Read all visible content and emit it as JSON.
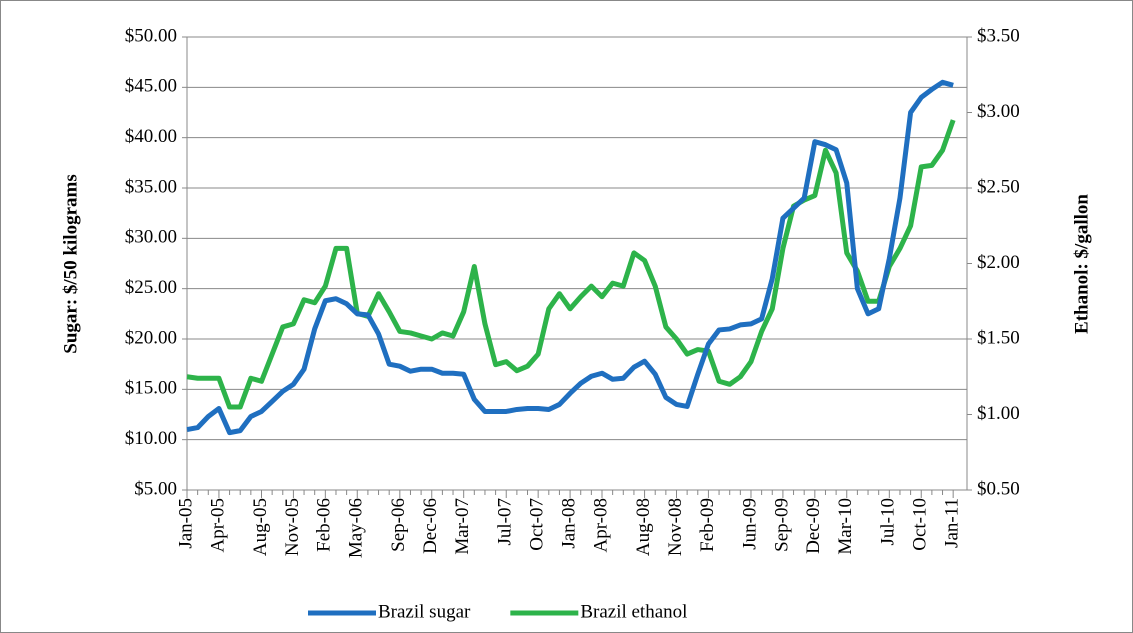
{
  "chart_data": {
    "type": "line",
    "y_label": "Sugar:  $/50 kilograms",
    "y2_label": "Ethanol:  $/gallon",
    "categories": [
      "Jan-05",
      null,
      null,
      "Apr-05",
      null,
      null,
      null,
      "Aug-05",
      null,
      null,
      "Nov-05",
      null,
      null,
      "Feb-06",
      null,
      null,
      "May-06",
      null,
      null,
      null,
      "Sep-06",
      null,
      null,
      "Dec-06",
      null,
      null,
      "Mar-07",
      null,
      null,
      null,
      "Jul-07",
      null,
      null,
      "Oct-07",
      null,
      null,
      "Jan-08",
      null,
      null,
      "Apr-08",
      null,
      null,
      null,
      "Aug-08",
      null,
      null,
      "Nov-08",
      null,
      null,
      "Feb-09",
      null,
      null,
      null,
      "Jun-09",
      null,
      null,
      "Sep-09",
      null,
      null,
      "Dec-09",
      null,
      null,
      "Mar-10",
      null,
      null,
      null,
      "Jul-10",
      null,
      null,
      "Oct-10",
      null,
      null,
      "Jan-11"
    ],
    "series": [
      {
        "name": "Brazil sugar",
        "color": "#1f6fc0",
        "values": [
          11.0,
          11.2,
          12.3,
          13.1,
          10.7,
          10.9,
          12.3,
          12.8,
          13.8,
          14.8,
          15.5,
          17.0,
          21.0,
          23.8,
          24.0,
          23.5,
          22.5,
          22.4,
          20.5,
          17.5,
          17.3,
          16.8,
          17.0,
          17.0,
          16.6,
          16.6,
          16.5,
          14.0,
          12.8,
          12.8,
          12.8,
          13.0,
          13.1,
          13.1,
          13.0,
          13.5,
          14.6,
          15.6,
          16.3,
          16.6,
          16.0,
          16.1,
          17.2,
          17.8,
          16.5,
          14.2,
          13.5,
          13.3,
          16.5,
          19.5,
          20.9,
          21.0,
          21.4,
          21.5,
          22.0,
          26.0,
          32.0,
          33.0,
          34.0,
          39.6,
          39.3,
          38.8,
          35.5,
          25.0,
          22.5,
          23.0,
          28.0,
          34.0,
          42.5,
          44.0,
          44.8,
          45.5,
          45.2
        ]
      },
      {
        "name": "Brazil ethanol",
        "color": "#2db34a",
        "axis": "y2",
        "values": [
          1.25,
          1.24,
          1.24,
          1.24,
          1.05,
          1.05,
          1.24,
          1.22,
          1.4,
          1.58,
          1.6,
          1.76,
          1.74,
          1.85,
          2.1,
          2.1,
          1.67,
          1.65,
          1.8,
          1.68,
          1.55,
          1.54,
          1.52,
          1.5,
          1.54,
          1.52,
          1.68,
          1.98,
          1.6,
          1.33,
          1.35,
          1.29,
          1.32,
          1.4,
          1.7,
          1.8,
          1.7,
          1.78,
          1.85,
          1.78,
          1.87,
          1.85,
          2.07,
          2.02,
          1.85,
          1.58,
          1.5,
          1.4,
          1.43,
          1.42,
          1.22,
          1.2,
          1.25,
          1.35,
          1.55,
          1.7,
          2.1,
          2.38,
          2.42,
          2.45,
          2.75,
          2.6,
          2.07,
          1.95,
          1.75,
          1.75,
          1.98,
          2.1,
          2.25,
          2.64,
          2.65,
          2.75,
          2.95
        ]
      }
    ],
    "ylim": [
      5,
      50
    ],
    "yticks": [
      {
        "value": 5,
        "label": "$5.00"
      },
      {
        "value": 10,
        "label": "$10.00"
      },
      {
        "value": 15,
        "label": "$15.00"
      },
      {
        "value": 20,
        "label": "$20.00"
      },
      {
        "value": 25,
        "label": "$25.00"
      },
      {
        "value": 30,
        "label": "$30.00"
      },
      {
        "value": 35,
        "label": "$35.00"
      },
      {
        "value": 40,
        "label": "$40.00"
      },
      {
        "value": 45,
        "label": "$45.00"
      },
      {
        "value": 50,
        "label": "$50.00"
      }
    ],
    "y2lim": [
      0.5,
      3.5
    ],
    "y2ticks": [
      {
        "value": 0.5,
        "label": "$0.50"
      },
      {
        "value": 1,
        "label": "$1.00"
      },
      {
        "value": 1.5,
        "label": "$1.50"
      },
      {
        "value": 2,
        "label": "$2.00"
      },
      {
        "value": 2.5,
        "label": "$2.50"
      },
      {
        "value": 3,
        "label": "$3.00"
      },
      {
        "value": 3.5,
        "label": "$3.50"
      }
    ],
    "grid": true,
    "legend": "bottom"
  }
}
